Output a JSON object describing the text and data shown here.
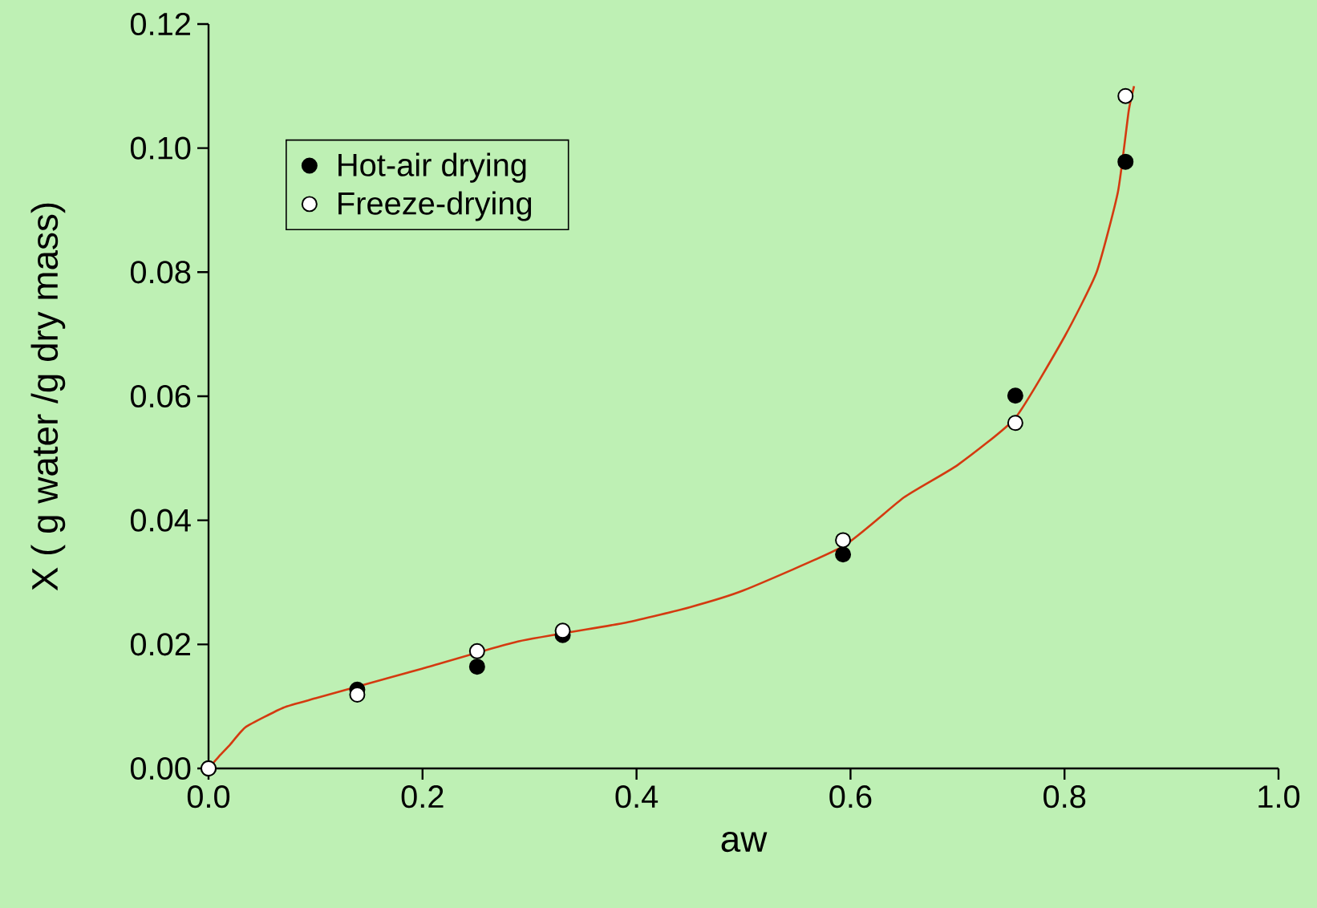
{
  "chart_data": {
    "type": "scatter",
    "xlabel": "aw",
    "ylabel": "X ( g water /g dry mass)",
    "xlim": [
      0,
      1.0
    ],
    "ylim": [
      0,
      0.12
    ],
    "xticks": [
      {
        "value": 0,
        "label": "0.0"
      },
      {
        "value": 0.2,
        "label": "0.2"
      },
      {
        "value": 0.4,
        "label": "0.4"
      },
      {
        "value": 0.6,
        "label": "0.6"
      },
      {
        "value": 0.8,
        "label": "0.8"
      },
      {
        "value": 1.0,
        "label": "1.0"
      }
    ],
    "yticks": [
      {
        "value": 0,
        "label": "0.00"
      },
      {
        "value": 0.02,
        "label": "0.02"
      },
      {
        "value": 0.04,
        "label": "0.04"
      },
      {
        "value": 0.06,
        "label": "0.06"
      },
      {
        "value": 0.08,
        "label": "0.08"
      },
      {
        "value": 0.1,
        "label": "0.10"
      },
      {
        "value": 0.12,
        "label": "0.12"
      }
    ],
    "marker": "circle",
    "legend": "top left",
    "grid": false,
    "series": [
      {
        "type": "line",
        "color": "#d43a10",
        "marker": "none",
        "x": [
          0,
          0.01,
          0.02,
          0.035,
          0.07,
          0.1,
          0.139,
          0.2,
          0.29,
          0.39,
          0.45,
          0.5,
          0.593,
          0.65,
          0.7,
          0.754,
          0.8,
          0.83,
          0.85,
          0.86,
          0.865
        ],
        "values": [
          0,
          0.002,
          0.0038,
          0.0067,
          0.0098,
          0.0113,
          0.0132,
          0.0161,
          0.0205,
          0.0235,
          0.026,
          0.0287,
          0.0358,
          0.0437,
          0.0489,
          0.0565,
          0.0696,
          0.08,
          0.093,
          0.106,
          0.11
        ]
      },
      {
        "name": "Hot-air drying",
        "color": "#000000",
        "x": [
          0,
          0.139,
          0.251,
          0.331,
          0.593,
          0.754,
          0.857
        ],
        "values": [
          0,
          0.0127,
          0.0164,
          0.0215,
          0.0345,
          0.0601,
          0.0978
        ]
      },
      {
        "name": "Freeze-drying",
        "color": "#ffffff",
        "x": [
          0,
          0.139,
          0.251,
          0.331,
          0.593,
          0.754,
          0.857
        ],
        "values": [
          0,
          0.0119,
          0.0189,
          0.0222,
          0.0368,
          0.0557,
          0.1084
        ]
      }
    ]
  }
}
